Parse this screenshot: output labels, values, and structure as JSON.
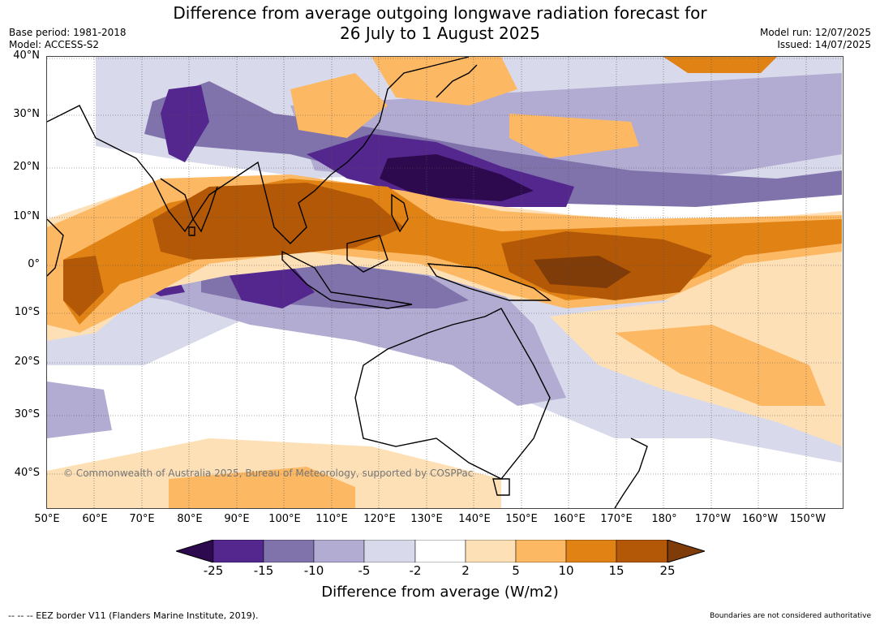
{
  "title_line1": "Difference from average outgoing longwave radiation forecast for",
  "title_line2": "26 July to 1 August 2025",
  "base_period": "Base period: 1981-2018",
  "model": "Model: ACCESS-S2",
  "model_run": "Model run: 12/07/2025",
  "issued": "Issued: 14/07/2025",
  "copyright": "© Commonwealth of Australia 2025, Bureau of Meteorology, supported by COSPPac",
  "lat_labels": [
    "40°N",
    "30°N",
    "20°N",
    "10°N",
    "0°",
    "10°S",
    "20°S",
    "30°S",
    "40°S"
  ],
  "lon_labels": [
    "50°E",
    "60°E",
    "70°E",
    "80°E",
    "90°E",
    "100°E",
    "110°E",
    "120°E",
    "130°E",
    "140°E",
    "150°E",
    "160°E",
    "170°E",
    "180°",
    "170°W",
    "160°W",
    "150°W"
  ],
  "colorbar": {
    "ticks": [
      "-25",
      "-15",
      "-10",
      "-5",
      "-2",
      "2",
      "5",
      "10",
      "15",
      "25"
    ],
    "colors": [
      "#2d0a4e",
      "#54278f",
      "#8073ac",
      "#b2abd2",
      "#d8daeb",
      "#ffffff",
      "#fee0b6",
      "#fdb863",
      "#e08214",
      "#b35806",
      "#7f3b08"
    ],
    "label": "Difference from average (W/m2)"
  },
  "footer_left": "--  --  -- EEZ border V11 (Flanders Marine Institute, 2019).",
  "footer_right": "Boundaries are not considered authoritative"
}
